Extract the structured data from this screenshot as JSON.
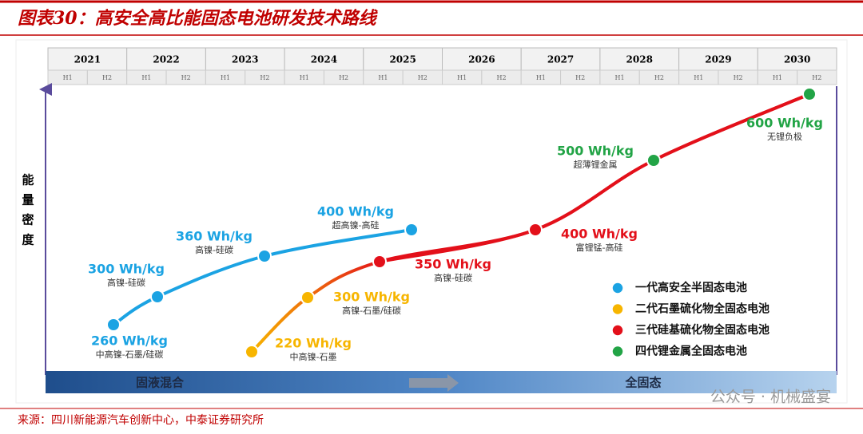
{
  "header": {
    "title": "图表30：高安全高比能固态电池研发技术路线"
  },
  "timeline": {
    "years": [
      "2021",
      "2022",
      "2023",
      "2024",
      "2025",
      "2026",
      "2027",
      "2028",
      "2029",
      "2030"
    ],
    "halves": [
      "H1",
      "H2"
    ]
  },
  "y_axis_label": "能量密度",
  "phases": [
    "固液混合",
    "全固态"
  ],
  "series": [
    {
      "name": "一代高安全半固态电池",
      "color": "#1ba3e3",
      "points": [
        {
          "label": "260 Wh/kg",
          "note": "中高镍-石墨/硅碳"
        },
        {
          "label": "300 Wh/kg",
          "note": "高镍-硅碳"
        },
        {
          "label": "360 Wh/kg",
          "note": "高镍-硅碳"
        },
        {
          "label": "400 Wh/kg",
          "note": "超高镍-高硅"
        }
      ]
    },
    {
      "name": "二代石墨硫化物全固态电池",
      "color": "#f7b500",
      "points": [
        {
          "label": "220 Wh/kg",
          "note": "中高镍-石墨"
        },
        {
          "label": "300 Wh/kg",
          "note": "高镍-石墨/硅碳"
        }
      ]
    },
    {
      "name": "三代硅基硫化物全固态电池",
      "color": "#e3101a",
      "points": [
        {
          "label": "350 Wh/kg",
          "note": "高镍-硅碳"
        },
        {
          "label": "400 Wh/kg",
          "note": "富锂锰-高硅"
        }
      ]
    },
    {
      "name": "四代锂金属全固态电池",
      "color": "#22a446",
      "points": [
        {
          "label": "500 Wh/kg",
          "note": "超薄锂金属"
        },
        {
          "label": "600 Wh/kg",
          "note": "无锂负极"
        }
      ]
    }
  ],
  "source": "来源：四川新能源汽车创新中心，中泰证券研究所",
  "watermark": "公众号 · 机械盛宴"
}
